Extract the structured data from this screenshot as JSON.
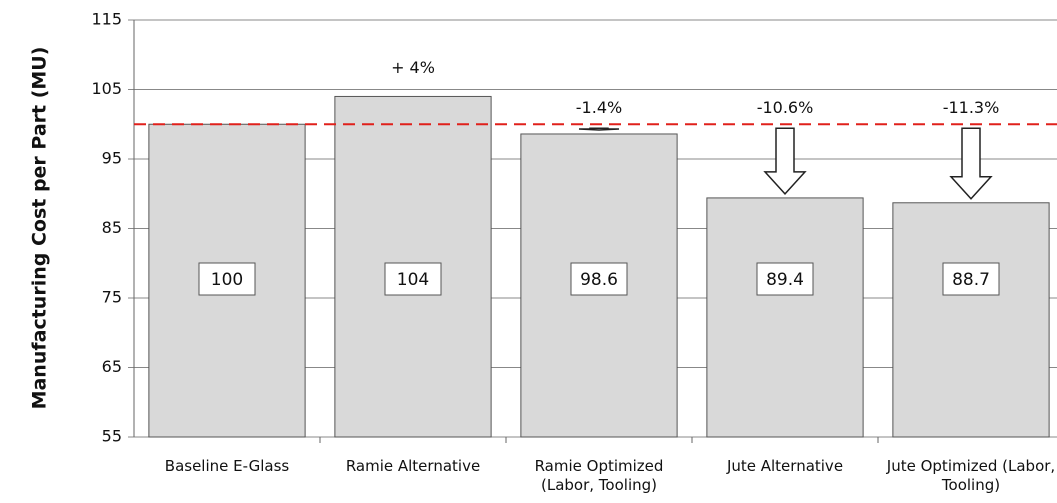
{
  "chart_data": {
    "type": "bar",
    "y_label": "Manufacturing Cost per Part (MU)",
    "categories": [
      "Baseline E-Glass",
      "Ramie Alternative",
      "Ramie Optimized (Labor, Tooling)",
      "Jute Alternative",
      "Jute Optimized (Labor, Tooling)"
    ],
    "values": [
      100,
      104,
      98.6,
      89.4,
      88.7
    ],
    "color": "#d9d9d9",
    "ylim": [
      55,
      115
    ],
    "yticks": [
      55,
      65,
      75,
      85,
      95,
      105,
      115
    ],
    "grid": true,
    "reference_line": {
      "value": 100,
      "color": "#e0201b"
    },
    "annotations": [
      null,
      "+ 4%",
      "-1.4%",
      "-10.6%",
      "-11.3%"
    ]
  }
}
